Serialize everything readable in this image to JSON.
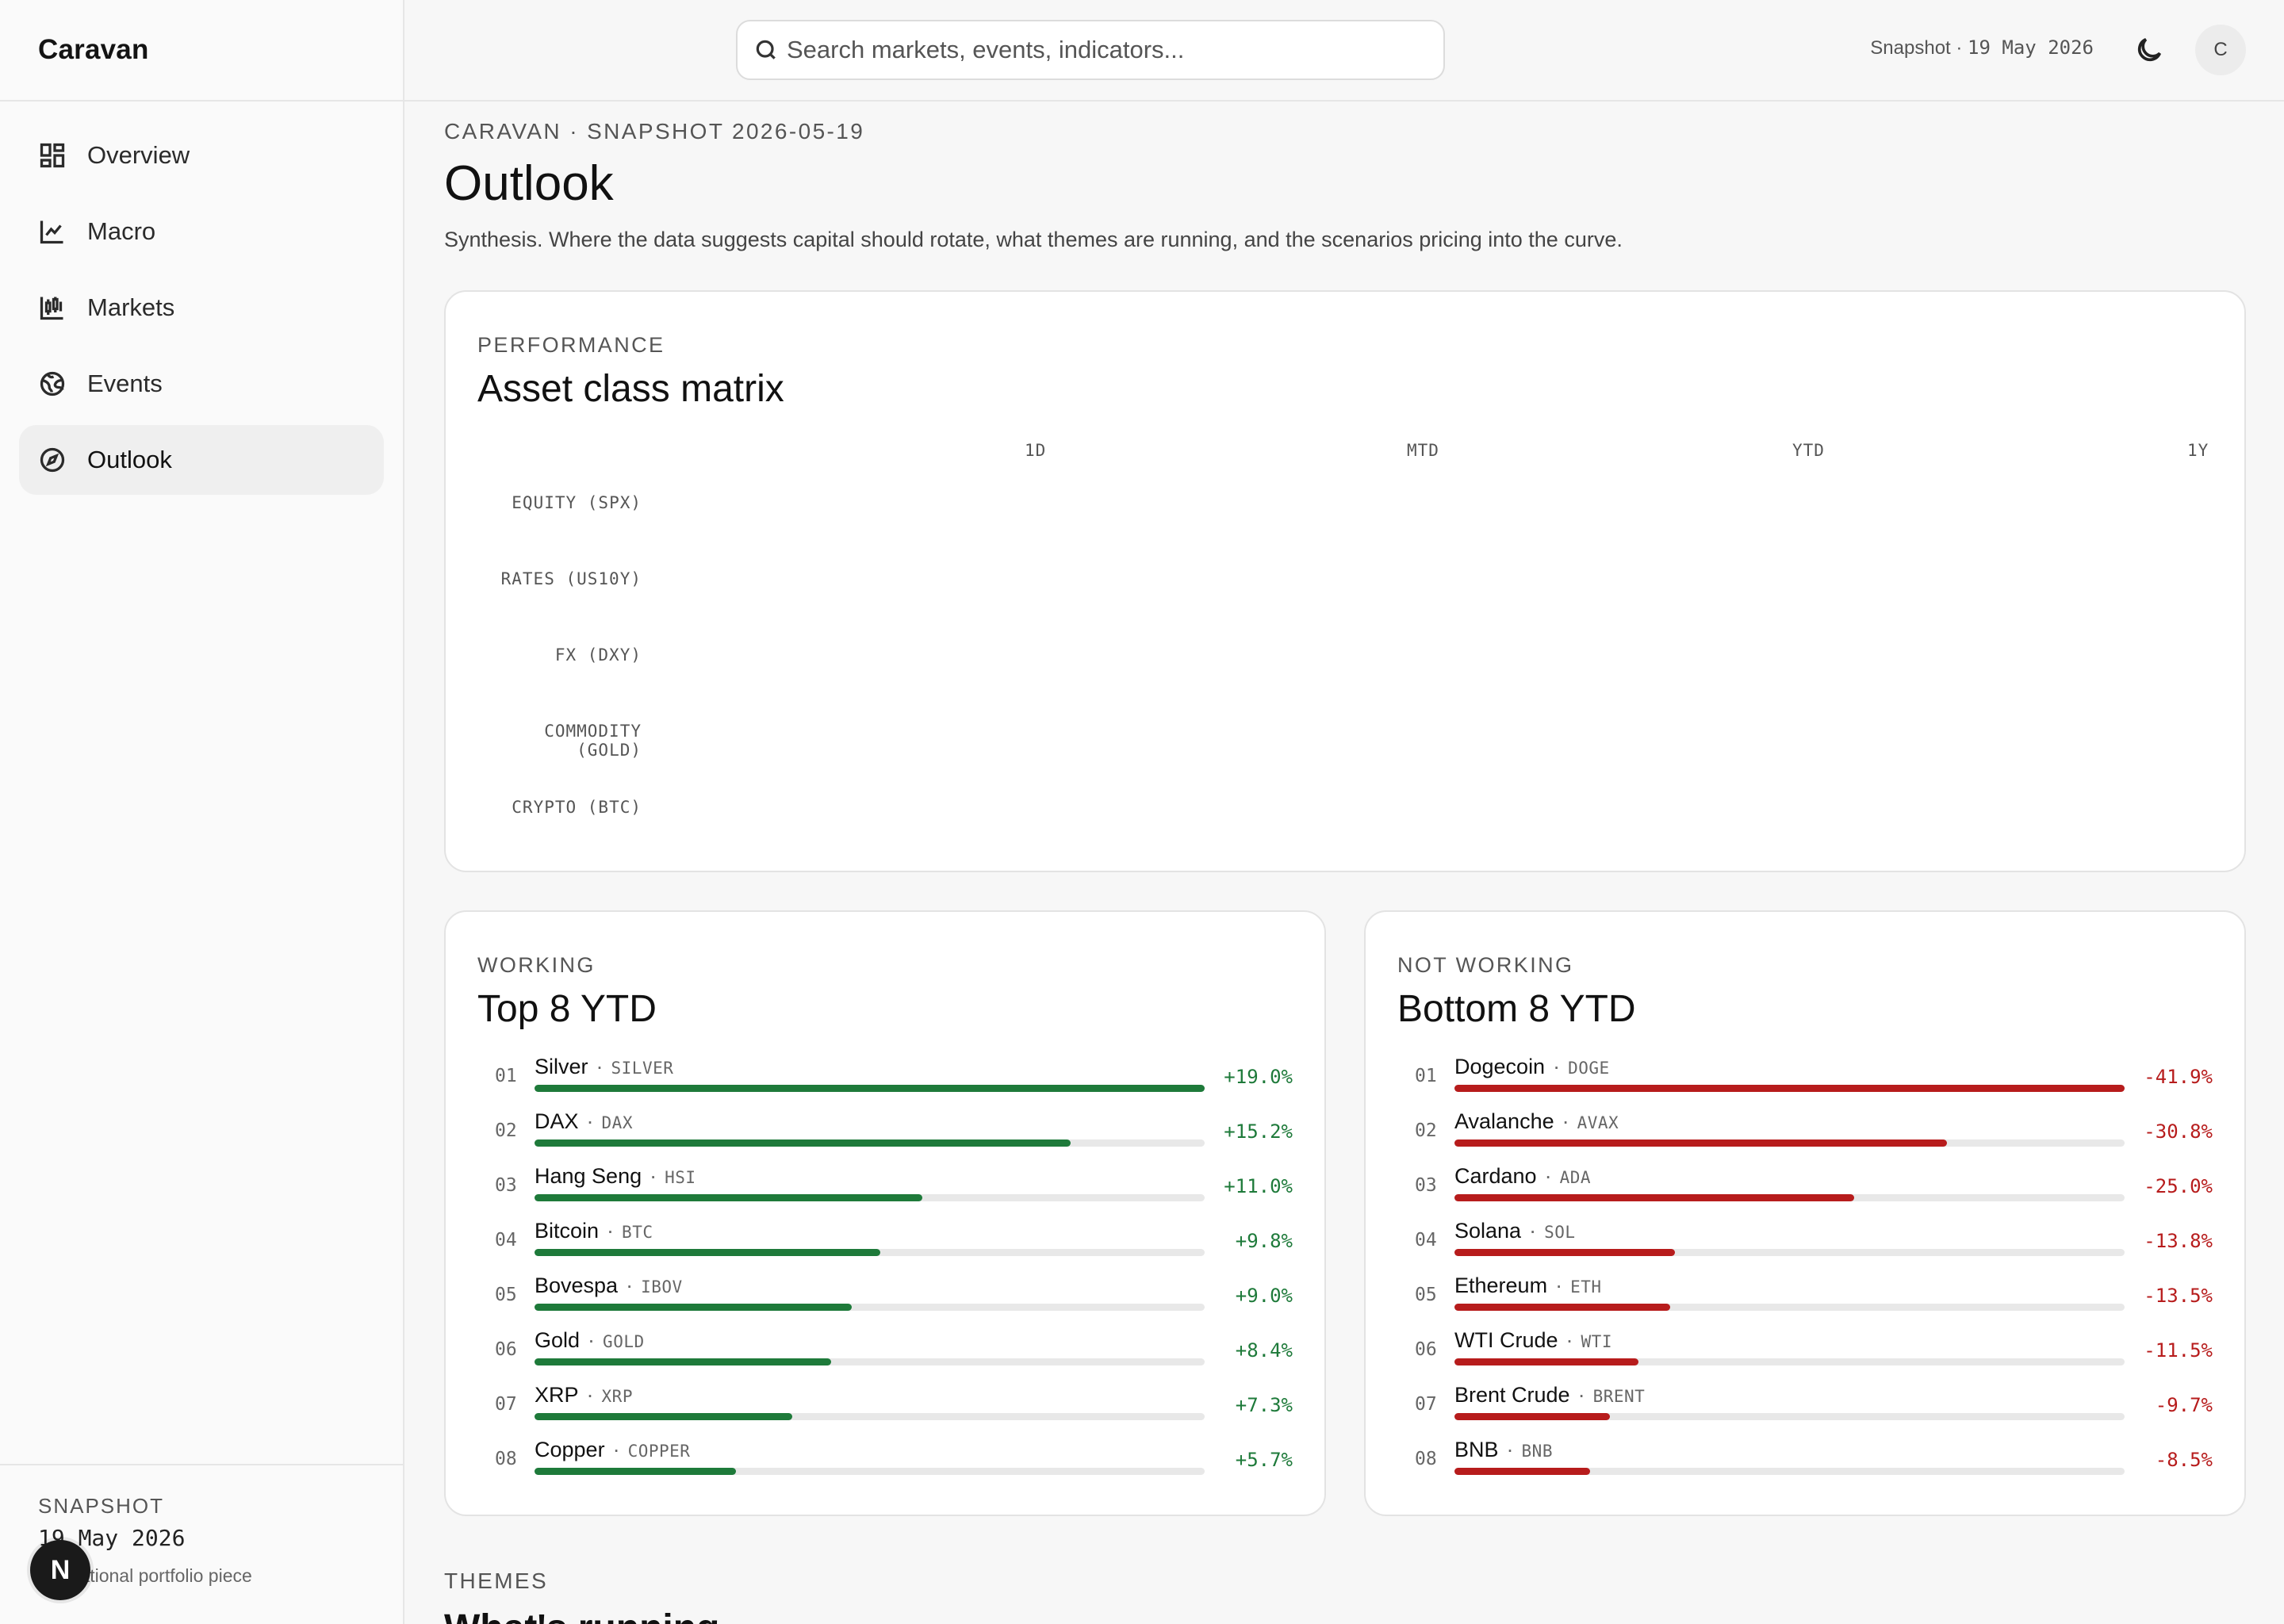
{
  "app": {
    "name": "Caravan"
  },
  "nav": {
    "items": [
      {
        "label": "Overview",
        "icon": "dashboard-icon"
      },
      {
        "label": "Macro",
        "icon": "line-chart-icon"
      },
      {
        "label": "Markets",
        "icon": "candlestick-icon"
      },
      {
        "label": "Events",
        "icon": "globe-icon"
      },
      {
        "label": "Outlook",
        "icon": "compass-icon",
        "active": true
      }
    ]
  },
  "sidebar_footer": {
    "label": "SNAPSHOT",
    "date": "19 May 2026",
    "note": "Educational portfolio piece"
  },
  "badge": {
    "letter": "N"
  },
  "topbar": {
    "search_placeholder": "Search markets, events, indicators...",
    "snapshot_prefix": "Snapshot · ",
    "snapshot_date": "19 May 2026",
    "avatar_initial": "C"
  },
  "page": {
    "eyebrow": "CARAVAN · SNAPSHOT 2026-05-19",
    "title": "Outlook",
    "subtitle": "Synthesis. Where the data suggests capital should rotate, what themes are running, and the scenarios pricing into the curve."
  },
  "matrix": {
    "eyebrow": "PERFORMANCE",
    "title": "Asset class matrix",
    "columns": [
      "1D",
      "MTD",
      "YTD",
      "1Y"
    ],
    "rows": [
      "EQUITY (SPX)",
      "RATES (US10Y)",
      "FX (DXY)",
      "COMMODITY (GOLD)",
      "CRYPTO (BTC)"
    ]
  },
  "top8": {
    "eyebrow": "WORKING",
    "title": "Top 8 YTD",
    "color": "#1e7a3a",
    "items": [
      {
        "rank": "01",
        "name": "Silver",
        "ticker": "SILVER",
        "value": "+19.0%",
        "pct": 19.0
      },
      {
        "rank": "02",
        "name": "DAX",
        "ticker": "DAX",
        "value": "+15.2%",
        "pct": 15.2
      },
      {
        "rank": "03",
        "name": "Hang Seng",
        "ticker": "HSI",
        "value": "+11.0%",
        "pct": 11.0
      },
      {
        "rank": "04",
        "name": "Bitcoin",
        "ticker": "BTC",
        "value": "+9.8%",
        "pct": 9.8
      },
      {
        "rank": "05",
        "name": "Bovespa",
        "ticker": "IBOV",
        "value": "+9.0%",
        "pct": 9.0
      },
      {
        "rank": "06",
        "name": "Gold",
        "ticker": "GOLD",
        "value": "+8.4%",
        "pct": 8.4
      },
      {
        "rank": "07",
        "name": "XRP",
        "ticker": "XRP",
        "value": "+7.3%",
        "pct": 7.3
      },
      {
        "rank": "08",
        "name": "Copper",
        "ticker": "COPPER",
        "value": "+5.7%",
        "pct": 5.7
      }
    ]
  },
  "bottom8": {
    "eyebrow": "NOT WORKING",
    "title": "Bottom 8 YTD",
    "color": "#b71c1c",
    "items": [
      {
        "rank": "01",
        "name": "Dogecoin",
        "ticker": "DOGE",
        "value": "-41.9%",
        "pct": 41.9
      },
      {
        "rank": "02",
        "name": "Avalanche",
        "ticker": "AVAX",
        "value": "-30.8%",
        "pct": 30.8
      },
      {
        "rank": "03",
        "name": "Cardano",
        "ticker": "ADA",
        "value": "-25.0%",
        "pct": 25.0
      },
      {
        "rank": "04",
        "name": "Solana",
        "ticker": "SOL",
        "value": "-13.8%",
        "pct": 13.8
      },
      {
        "rank": "05",
        "name": "Ethereum",
        "ticker": "ETH",
        "value": "-13.5%",
        "pct": 13.5
      },
      {
        "rank": "06",
        "name": "WTI Crude",
        "ticker": "WTI",
        "value": "-11.5%",
        "pct": 11.5
      },
      {
        "rank": "07",
        "name": "Brent Crude",
        "ticker": "BRENT",
        "value": "-9.7%",
        "pct": 9.7
      },
      {
        "rank": "08",
        "name": "BNB",
        "ticker": "BNB",
        "value": "-8.5%",
        "pct": 8.5
      }
    ]
  },
  "themes": {
    "eyebrow": "THEMES",
    "title": "What's running"
  }
}
